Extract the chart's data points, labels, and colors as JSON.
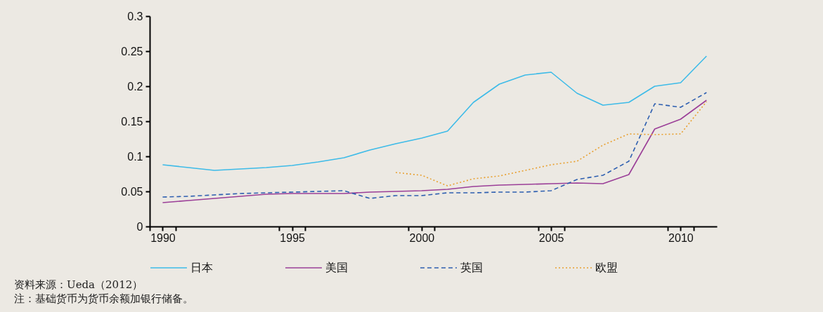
{
  "chart_data": {
    "type": "line",
    "x": [
      1990,
      1991,
      1992,
      1993,
      1994,
      1995,
      1996,
      1997,
      1998,
      1999,
      2000,
      2001,
      2002,
      2003,
      2004,
      2005,
      2006,
      2007,
      2008,
      2009,
      2010,
      2011
    ],
    "series": [
      {
        "name": "日本",
        "color": "#3dbbe8",
        "line_style": "solid",
        "values": [
          0.088,
          0.084,
          0.08,
          0.082,
          0.084,
          0.087,
          0.092,
          0.098,
          0.109,
          0.118,
          0.126,
          0.136,
          0.177,
          0.203,
          0.216,
          0.22,
          0.19,
          0.173,
          0.177,
          0.2,
          0.205,
          0.243
        ]
      },
      {
        "name": "美国",
        "color": "#9b3f98",
        "line_style": "solid",
        "values": [
          0.034,
          0.037,
          0.04,
          0.043,
          0.046,
          0.047,
          0.047,
          0.047,
          0.049,
          0.05,
          0.051,
          0.053,
          0.057,
          0.059,
          0.06,
          0.061,
          0.062,
          0.061,
          0.074,
          0.139,
          0.153,
          0.18
        ]
      },
      {
        "name": "英国",
        "color": "#2e5fb0",
        "line_style": "dashed",
        "values": [
          0.042,
          0.043,
          0.045,
          0.047,
          0.048,
          0.049,
          0.05,
          0.051,
          0.04,
          0.044,
          0.044,
          0.048,
          0.048,
          0.049,
          0.049,
          0.051,
          0.067,
          0.073,
          0.093,
          0.175,
          0.17,
          0.191
        ]
      },
      {
        "name": "欧盟",
        "color": "#e8a030",
        "line_style": "dotted",
        "values": [
          null,
          null,
          null,
          null,
          null,
          null,
          null,
          null,
          null,
          0.077,
          0.073,
          0.058,
          0.068,
          0.072,
          0.08,
          0.088,
          0.093,
          0.116,
          0.132,
          0.131,
          0.132,
          0.178
        ]
      }
    ],
    "xlim": [
      1989.5,
      2011.4
    ],
    "xticks": [
      {
        "value": 1989.5,
        "label": null
      },
      1990,
      {
        "value": 1990.5,
        "label": null
      },
      {
        "value": 1994.5,
        "label": null
      },
      1995,
      {
        "value": 1995.5,
        "label": null
      },
      {
        "value": 1999.5,
        "label": null
      },
      2000,
      {
        "value": 2000.5,
        "label": null
      },
      {
        "value": 2004.5,
        "label": null
      },
      2005,
      {
        "value": 2005.5,
        "label": null
      },
      {
        "value": 2009.5,
        "label": null
      },
      2010,
      {
        "value": 2010.5,
        "label": null
      }
    ],
    "ylim": [
      0,
      0.3
    ],
    "yticks": [
      0,
      0.05,
      0.1,
      0.15,
      0.2,
      0.25,
      0.3
    ],
    "grid": false,
    "legend": "bottom",
    "annotations": [
      "资料来源：Ueda（2012）",
      "注：基础货币为货币余额加银行储备。"
    ]
  }
}
